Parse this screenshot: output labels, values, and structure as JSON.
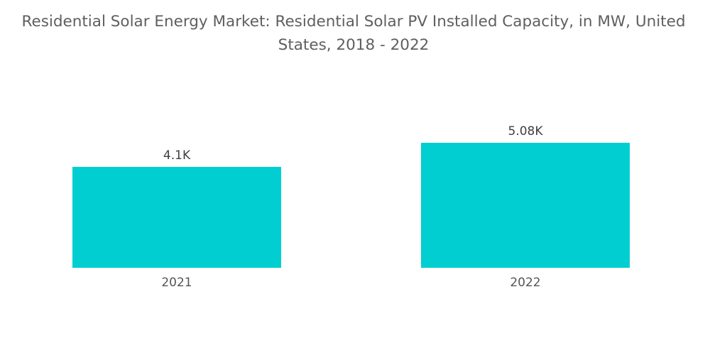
{
  "chart_data": {
    "type": "bar",
    "title": "Residential Solar Energy Market: Residential Solar PV Installed Capacity, in MW, United States, 2018 - 2022",
    "categories": [
      "2021",
      "2022"
    ],
    "values": [
      4100,
      5080
    ],
    "data_labels": [
      "4.1K",
      "5.08K"
    ],
    "xlabel": "",
    "ylabel": "",
    "ylim": [
      0,
      5080
    ],
    "grid": false,
    "legend": "none",
    "bar_color": "#00CED1"
  }
}
